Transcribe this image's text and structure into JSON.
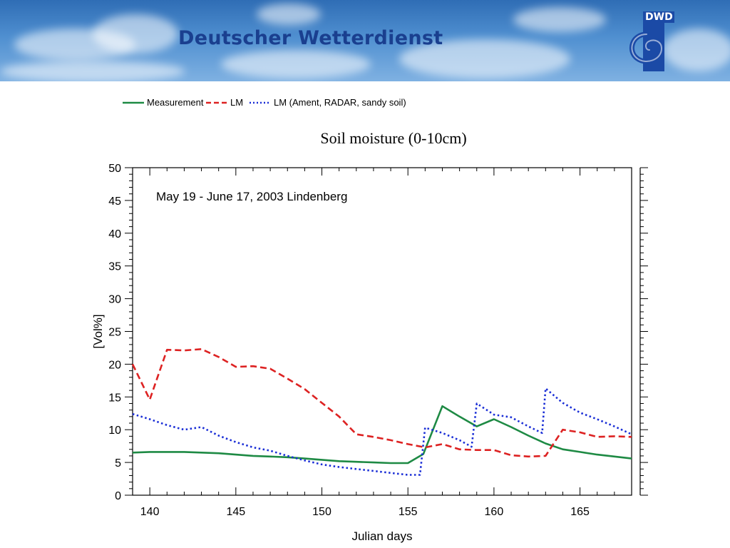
{
  "banner": {
    "title": "Deutscher Wetterdienst",
    "logo_text": "DWD"
  },
  "colors": {
    "measurement": "#1e8a44",
    "lm": "#dd2222",
    "lm_ament": "#1a2ed6",
    "banner_title": "#1a3f8f"
  },
  "chart_data": {
    "type": "line",
    "title": "Soil moisture (0-10cm)",
    "annotation": "May 19 - June 17, 2003  Lindenberg",
    "xlabel": "Julian days",
    "ylabel": "[Vol%]",
    "xlim": [
      139,
      168
    ],
    "ylim": [
      0,
      50
    ],
    "xticks": [
      140,
      145,
      150,
      155,
      160,
      165
    ],
    "yticks": [
      0,
      5,
      10,
      15,
      20,
      25,
      30,
      35,
      40,
      45,
      50
    ],
    "grid": false,
    "legend_position": "top-left, above plot",
    "series": [
      {
        "name": "Measurement",
        "style": "solid",
        "x": [
          139,
          140,
          141,
          142,
          143,
          144,
          145,
          146,
          147,
          148,
          149,
          150,
          151,
          152,
          153,
          154,
          155,
          155.9,
          157,
          158,
          159,
          160,
          161,
          162,
          163,
          164,
          165,
          166,
          167,
          168
        ],
        "y": [
          6.5,
          6.6,
          6.6,
          6.6,
          6.5,
          6.4,
          6.2,
          6.0,
          5.9,
          5.8,
          5.6,
          5.4,
          5.2,
          5.1,
          5.0,
          4.9,
          4.9,
          6.3,
          13.6,
          12.0,
          10.5,
          11.6,
          10.4,
          9.1,
          7.9,
          7.0,
          6.6,
          6.2,
          5.9,
          5.6
        ]
      },
      {
        "name": "LM",
        "style": "dashed",
        "x": [
          139,
          140,
          141,
          142,
          143,
          144,
          145,
          146,
          147,
          148,
          149,
          150,
          151,
          152,
          153,
          154,
          155,
          156,
          157,
          158,
          159,
          160,
          161,
          162,
          163,
          164,
          165,
          166,
          167,
          168
        ],
        "y": [
          20.0,
          14.6,
          22.2,
          22.1,
          22.3,
          21.1,
          19.6,
          19.7,
          19.3,
          17.8,
          16.2,
          14.1,
          12.0,
          9.3,
          8.9,
          8.4,
          7.8,
          7.3,
          7.8,
          7.0,
          6.9,
          6.9,
          6.1,
          5.9,
          6.0,
          10.0,
          9.6,
          8.9,
          9.0,
          8.9
        ]
      },
      {
        "name": "LM (Ament, RADAR, sandy soil)",
        "style": "dotted",
        "x": [
          139,
          140,
          141,
          142,
          143,
          144,
          145,
          146,
          147,
          148,
          149,
          150,
          151,
          152,
          153,
          154,
          155,
          155.7,
          156,
          157,
          158,
          158.7,
          159,
          160,
          161,
          162,
          162.8,
          163,
          164,
          165,
          166,
          167,
          168
        ],
        "y": [
          12.4,
          11.6,
          10.7,
          10.0,
          10.4,
          9.1,
          8.1,
          7.3,
          6.8,
          6.0,
          5.3,
          4.7,
          4.3,
          4.0,
          3.7,
          3.4,
          3.1,
          3.1,
          10.3,
          9.5,
          8.4,
          7.4,
          14.0,
          12.3,
          11.9,
          10.5,
          9.5,
          16.3,
          14.1,
          12.6,
          11.6,
          10.5,
          9.3
        ]
      }
    ]
  }
}
